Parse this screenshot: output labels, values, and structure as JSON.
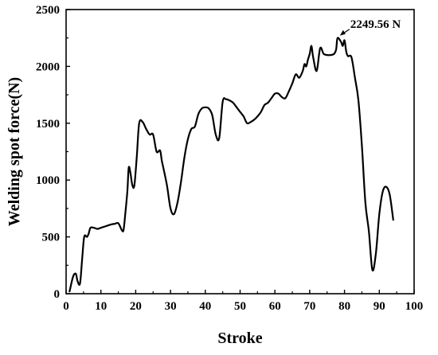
{
  "chart_data": {
    "type": "line",
    "title": "",
    "xlabel": "Stroke",
    "ylabel": "Welding spot force(N)",
    "xlim": [
      0,
      100
    ],
    "ylim": [
      0,
      2500
    ],
    "xticks": [
      0,
      10,
      20,
      30,
      40,
      50,
      60,
      70,
      80,
      90,
      100
    ],
    "yticks": [
      0,
      500,
      1000,
      1500,
      2000,
      2500
    ],
    "grid": false,
    "line_color": "#000000",
    "annotation": {
      "text": "2249.56 N",
      "x": 78,
      "y": 2249.56
    },
    "series": [
      {
        "x": [
          1,
          2,
          2.8,
          3.3,
          4,
          4.6,
          5.2,
          6,
          6.5,
          7,
          8,
          9,
          10,
          11,
          12,
          13,
          14,
          15,
          16,
          16.5,
          17,
          17.6,
          18,
          18.5,
          19,
          19.6,
          20.3,
          21,
          22,
          23,
          24,
          25,
          26,
          27,
          27.5,
          28,
          29,
          30,
          31,
          32,
          33,
          34,
          35,
          36,
          37,
          38,
          39,
          40,
          41,
          42,
          43,
          44,
          45,
          46,
          47,
          48,
          49,
          50,
          51,
          52,
          53,
          54,
          55,
          56,
          57,
          58,
          59,
          60,
          61,
          62,
          63,
          64,
          65,
          66,
          67,
          68,
          68.5,
          69,
          69.5,
          70,
          70.5,
          71,
          72,
          73,
          74,
          75,
          76,
          77,
          77.6,
          78,
          79,
          79.5,
          80,
          80.5,
          81,
          82,
          83,
          84,
          85,
          86,
          87,
          88,
          89,
          90,
          91,
          92,
          93,
          94
        ],
        "y": [
          20,
          150,
          175,
          110,
          90,
          300,
          500,
          500,
          530,
          580,
          580,
          570,
          580,
          590,
          600,
          610,
          615,
          620,
          560,
          560,
          700,
          900,
          1110,
          1060,
          960,
          950,
          1200,
          1500,
          1510,
          1450,
          1400,
          1400,
          1250,
          1260,
          1170,
          1100,
          950,
          750,
          700,
          800,
          980,
          1200,
          1360,
          1450,
          1470,
          1580,
          1630,
          1640,
          1630,
          1570,
          1400,
          1370,
          1690,
          1710,
          1700,
          1680,
          1640,
          1600,
          1560,
          1500,
          1510,
          1530,
          1560,
          1600,
          1660,
          1680,
          1720,
          1760,
          1760,
          1730,
          1720,
          1780,
          1850,
          1930,
          1900,
          1960,
          2020,
          2000,
          2060,
          2110,
          2180,
          2080,
          1960,
          2160,
          2110,
          2100,
          2100,
          2110,
          2150,
          2249.56,
          2215,
          2180,
          2230,
          2130,
          2090,
          2080,
          1900,
          1700,
          1300,
          800,
          550,
          210,
          350,
          700,
          900,
          940,
          870,
          650
        ]
      }
    ]
  }
}
